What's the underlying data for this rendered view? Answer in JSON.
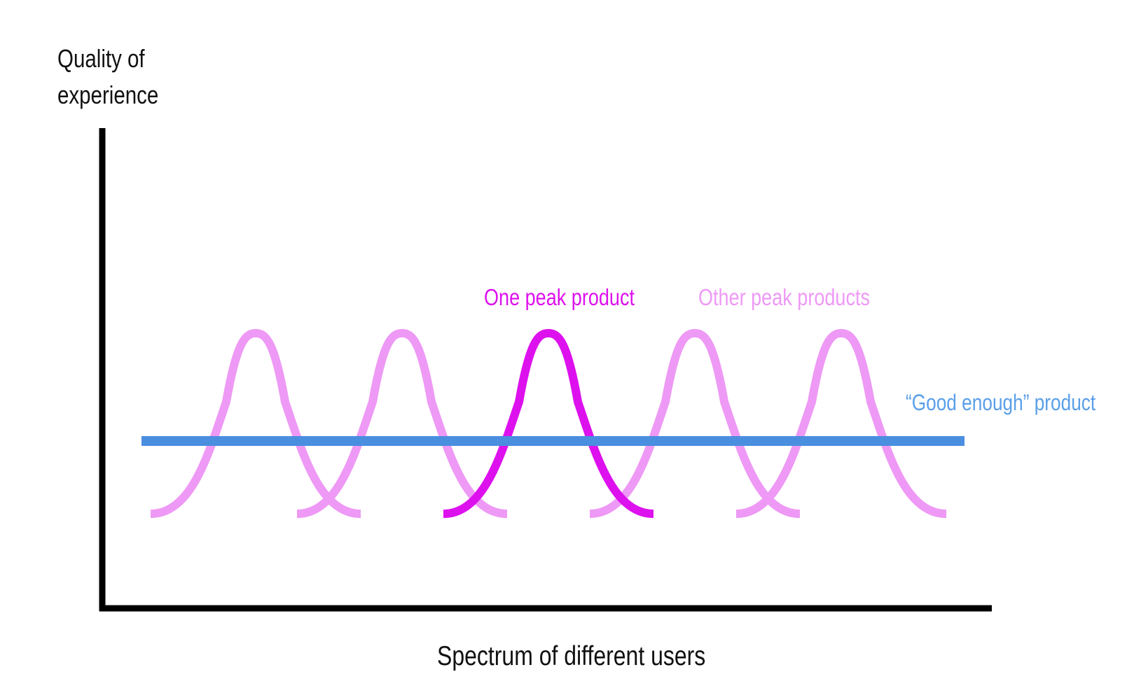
{
  "diagram": {
    "y_axis_label_line1": "Quality of",
    "y_axis_label_line2": "experience",
    "x_axis_label": "Spectrum of different users",
    "label_one_peak": "One peak product",
    "label_other_peaks": "Other peak products",
    "label_good_enough": "“Good enough” product",
    "colors": {
      "axis": "#000000",
      "one_peak": "#dd11ee",
      "other_peaks": "#ee99f5",
      "good_enough": "#4a8ee0",
      "good_enough_label": "#5a9fe8",
      "axis_label": "#111111"
    },
    "peaks": [
      {
        "kind": "other"
      },
      {
        "kind": "other"
      },
      {
        "kind": "one"
      },
      {
        "kind": "other"
      },
      {
        "kind": "other"
      }
    ]
  }
}
